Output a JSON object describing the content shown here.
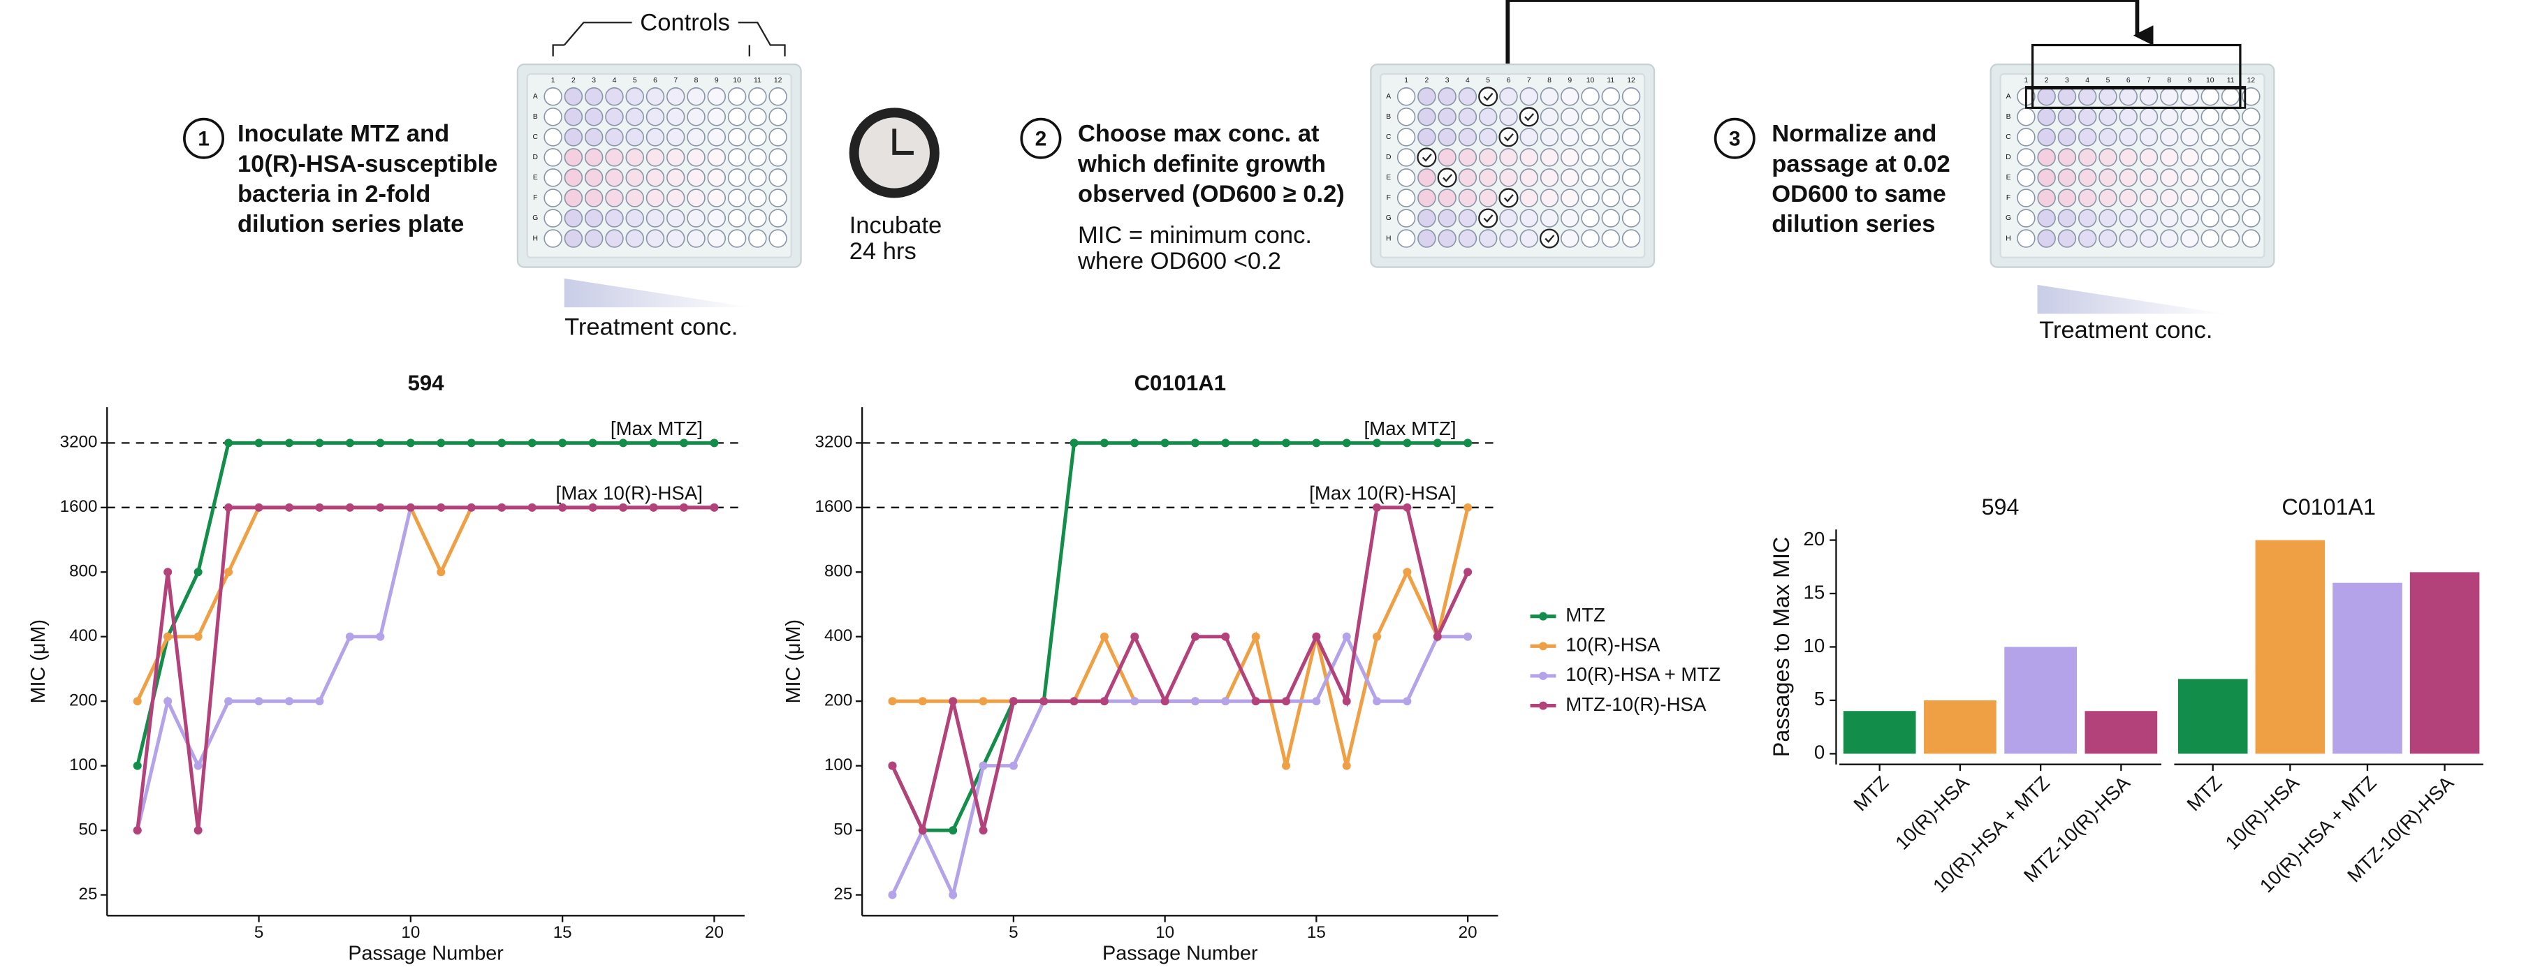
{
  "diagram": {
    "steps": [
      {
        "number": "1",
        "lines": [
          "Inoculate MTZ and",
          "10(R)-HSA-susceptible",
          "bacteria in 2-fold",
          "dilution series plate"
        ]
      },
      {
        "number": "2",
        "lines": [
          "Choose max conc. at",
          "which definite growth",
          "observed (OD600 ≥ 0.2)"
        ]
      },
      {
        "number": "3",
        "lines": [
          "Normalize and",
          "passage at 0.02",
          "OD600 to same",
          "dilution series"
        ]
      }
    ],
    "controls": "Controls",
    "incubate": [
      "Incubate",
      "24 hrs"
    ],
    "mic_note": [
      "MIC = minimum conc.",
      "where OD600 <0.2"
    ],
    "treatment": "Treatment conc.",
    "plate_columns": [
      "1",
      "2",
      "3",
      "4",
      "5",
      "6",
      "7",
      "8",
      "9",
      "10",
      "11",
      "12"
    ],
    "plate_rows": [
      "A",
      "B",
      "C",
      "D",
      "E",
      "F",
      "G",
      "H"
    ]
  },
  "chart_data": [
    {
      "type": "line",
      "title": "594",
      "x_label": "Passage Number",
      "y_label": "MIC (μM)",
      "yscale": "log2",
      "x": [
        1,
        2,
        3,
        4,
        5,
        6,
        7,
        8,
        9,
        10,
        11,
        12,
        13,
        14,
        15,
        16,
        17,
        18,
        19,
        20
      ],
      "xlim": [
        0,
        21
      ],
      "xticks": [
        5,
        10,
        15,
        20
      ],
      "ylim": [
        20,
        4700
      ],
      "yticks": [
        25,
        50,
        100,
        200,
        400,
        800,
        1600,
        3200
      ],
      "reference_lines": [
        {
          "value": 3200,
          "label": "[Max MTZ]"
        },
        {
          "value": 1600,
          "label": "[Max 10(R)-HSA]"
        }
      ],
      "series": [
        {
          "name": "MTZ",
          "color": "#138d4a",
          "values": [
            100,
            400,
            800,
            3200,
            3200,
            3200,
            3200,
            3200,
            3200,
            3200,
            3200,
            3200,
            3200,
            3200,
            3200,
            3200,
            3200,
            3200,
            3200,
            3200
          ]
        },
        {
          "name": "10(R)-HSA",
          "color": "#f0a044",
          "values": [
            200,
            400,
            400,
            800,
            1600,
            1600,
            1600,
            1600,
            1600,
            1600,
            800,
            1600,
            1600,
            1600,
            1600,
            1600,
            1600,
            1600,
            1600,
            1600
          ]
        },
        {
          "name": "10(R)-HSA + MTZ",
          "color": "#b4a3e8",
          "values": [
            50,
            200,
            100,
            200,
            200,
            200,
            200,
            400,
            400,
            1600,
            1600,
            1600,
            1600,
            1600,
            1600,
            1600,
            1600,
            1600,
            1600,
            1600
          ]
        },
        {
          "name": "MTZ-10(R)-HSA",
          "color": "#b3427a",
          "values": [
            50,
            800,
            50,
            1600,
            1600,
            1600,
            1600,
            1600,
            1600,
            1600,
            1600,
            1600,
            1600,
            1600,
            1600,
            1600,
            1600,
            1600,
            1600,
            1600
          ]
        }
      ]
    },
    {
      "type": "line",
      "title": "C0101A1",
      "x_label": "Passage Number",
      "y_label": "MIC (μM)",
      "yscale": "log2",
      "legend_position": "right",
      "x": [
        1,
        2,
        3,
        4,
        5,
        6,
        7,
        8,
        9,
        10,
        11,
        12,
        13,
        14,
        15,
        16,
        17,
        18,
        19,
        20
      ],
      "xlim": [
        0,
        21
      ],
      "xticks": [
        5,
        10,
        15,
        20
      ],
      "ylim": [
        20,
        4700
      ],
      "yticks": [
        25,
        50,
        100,
        200,
        400,
        800,
        1600,
        3200
      ],
      "reference_lines": [
        {
          "value": 3200,
          "label": "[Max MTZ]"
        },
        {
          "value": 1600,
          "label": "[Max 10(R)-HSA]"
        }
      ],
      "series": [
        {
          "name": "MTZ",
          "color": "#138d4a",
          "values": [
            100,
            50,
            50,
            100,
            200,
            200,
            3200,
            3200,
            3200,
            3200,
            3200,
            3200,
            3200,
            3200,
            3200,
            3200,
            3200,
            3200,
            3200,
            3200
          ]
        },
        {
          "name": "10(R)-HSA",
          "color": "#f0a044",
          "values": [
            200,
            200,
            200,
            200,
            200,
            200,
            200,
            400,
            200,
            200,
            200,
            200,
            400,
            100,
            400,
            100,
            400,
            800,
            400,
            1600
          ]
        },
        {
          "name": "10(R)-HSA + MTZ",
          "color": "#b4a3e8",
          "values": [
            25,
            50,
            25,
            100,
            100,
            200,
            200,
            200,
            200,
            200,
            200,
            200,
            200,
            200,
            200,
            400,
            200,
            200,
            400,
            400
          ]
        },
        {
          "name": "MTZ-10(R)-HSA",
          "color": "#b3427a",
          "values": [
            100,
            50,
            200,
            50,
            200,
            200,
            200,
            200,
            400,
            200,
            400,
            400,
            200,
            200,
            400,
            200,
            1600,
            1600,
            400,
            800
          ]
        }
      ]
    },
    {
      "type": "bar",
      "y_label": "Passages to Max MIC",
      "categories": [
        "MTZ",
        "10(R)-HSA",
        "10(R)-HSA + MTZ",
        "MTZ-10(R)-HSA"
      ],
      "colors": [
        "#138d4a",
        "#f0a044",
        "#b4a3e8",
        "#b3427a"
      ],
      "ylim": [
        -1,
        21
      ],
      "yticks": [
        0,
        5,
        10,
        15,
        20
      ],
      "series": [
        {
          "name": "594",
          "values": [
            4,
            5,
            10,
            4
          ]
        },
        {
          "name": "C0101A1",
          "values": [
            7,
            20,
            16,
            17
          ]
        }
      ]
    }
  ]
}
